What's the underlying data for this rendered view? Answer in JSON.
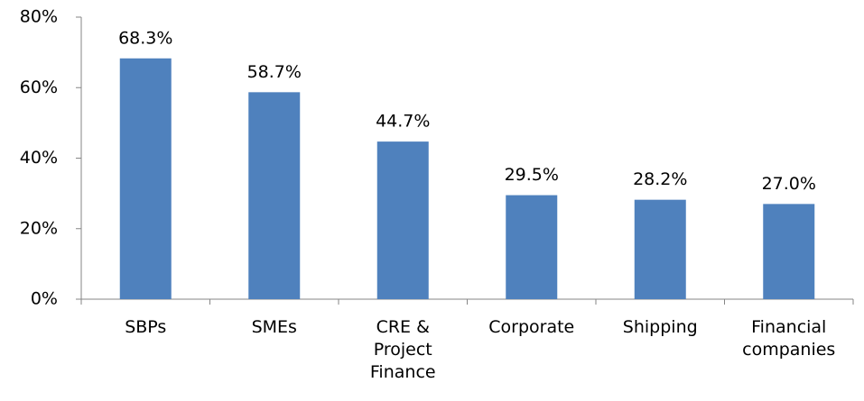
{
  "chart_data": {
    "type": "bar",
    "categories": [
      "SBPs",
      "SMEs",
      "CRE & Project Finance",
      "Corporate",
      "Shipping",
      "Financial companies"
    ],
    "values": [
      68.3,
      58.7,
      44.7,
      29.5,
      28.2,
      27.0
    ],
    "value_labels": [
      "68.3%",
      "58.7%",
      "44.7%",
      "29.5%",
      "28.2%",
      "27.0%"
    ],
    "color": "#4f81bd",
    "ylim": [
      0,
      80
    ],
    "yticks": [
      {
        "value": 0,
        "label": "0%"
      },
      {
        "value": 20,
        "label": "20%"
      },
      {
        "value": 40,
        "label": "40%"
      },
      {
        "value": 60,
        "label": "60%"
      },
      {
        "value": 80,
        "label": "80%"
      }
    ]
  }
}
